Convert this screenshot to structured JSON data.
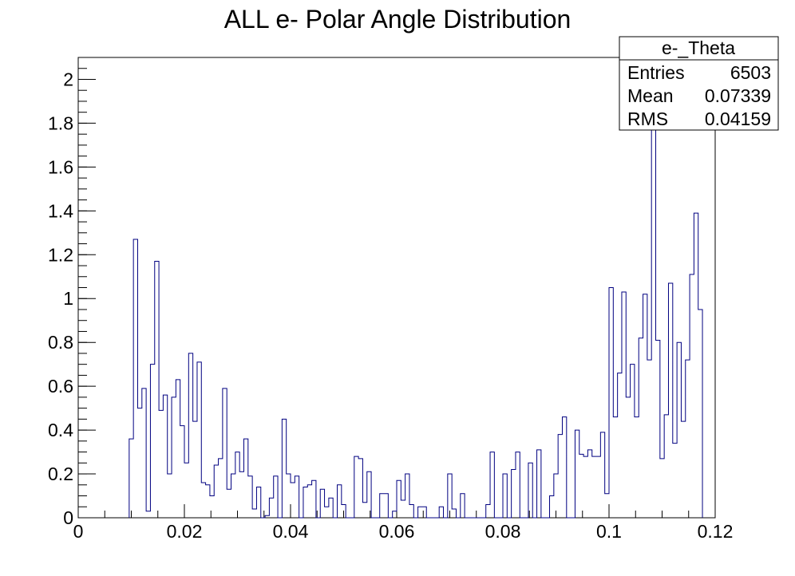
{
  "chart_data": {
    "type": "histogram",
    "title": "ALL e- Polar Angle Distribution",
    "xlim": [
      0,
      0.12
    ],
    "ylim": [
      0,
      2.1
    ],
    "x_ticks": [
      "0",
      "0.02",
      "0.04",
      "0.06",
      "0.08",
      "0.1",
      "0.12"
    ],
    "y_ticks": [
      "0",
      "0.2",
      "0.4",
      "0.6",
      "0.8",
      "1",
      "1.2",
      "1.4",
      "1.6",
      "1.8",
      "2"
    ],
    "x_tick_values": [
      0,
      0.02,
      0.04,
      0.06,
      0.08,
      0.1,
      0.12
    ],
    "y_tick_values": [
      0,
      0.2,
      0.4,
      0.6,
      0.8,
      1.0,
      1.2,
      1.4,
      1.6,
      1.8,
      2.0
    ],
    "grid": false,
    "line_color": "#000080",
    "bin_width": 0.0008,
    "bin_start": 0.0096,
    "values": [
      0.36,
      1.27,
      0.5,
      0.59,
      0.03,
      0.7,
      1.17,
      0.49,
      0.56,
      0.2,
      0.55,
      0.63,
      0.42,
      0.25,
      0.75,
      0.44,
      0.71,
      0.16,
      0.15,
      0.1,
      0.24,
      0.27,
      0.59,
      0.13,
      0.2,
      0.3,
      0.21,
      0.36,
      0.19,
      0.04,
      0.14,
      0.0,
      0.01,
      0.09,
      0.19,
      0.0,
      0.45,
      0.2,
      0.16,
      0.19,
      0.0,
      0.14,
      0.15,
      0.17,
      0.0,
      0.13,
      0.05,
      0.09,
      0.0,
      0.15,
      0.06,
      0.0,
      0.0,
      0.28,
      0.27,
      0.07,
      0.21,
      0.0,
      0.0,
      0.11,
      0.11,
      0.0,
      0.03,
      0.17,
      0.08,
      0.2,
      0.06,
      0.0,
      0.05,
      0.05,
      0.0,
      0.0,
      0.0,
      0.05,
      0.0,
      0.2,
      0.04,
      0.0,
      0.11,
      0.0,
      0.0,
      0.0,
      0.0,
      0.0,
      0.06,
      0.3,
      0.0,
      0.0,
      0.2,
      0.0,
      0.22,
      0.3,
      0.0,
      0.0,
      0.25,
      0.0,
      0.31,
      0.0,
      0.0,
      0.1,
      0.2,
      0.38,
      0.46,
      0.0,
      0.0,
      0.4,
      0.29,
      0.28,
      0.31,
      0.28,
      0.28,
      0.39,
      0.11,
      1.05,
      0.46,
      0.66,
      1.03,
      0.55,
      0.7,
      0.46,
      0.82,
      1.02,
      0.72,
      1.78,
      0.81,
      0.27,
      0.47,
      1.07,
      0.34,
      0.8,
      0.44,
      0.72,
      1.11,
      1.39,
      0.95
    ]
  },
  "stats_box": {
    "name": "e-_Theta",
    "rows": [
      {
        "label": "Entries",
        "value": "6503"
      },
      {
        "label": "Mean",
        "value": "0.07339"
      },
      {
        "label": "RMS",
        "value": "0.04159"
      }
    ]
  }
}
